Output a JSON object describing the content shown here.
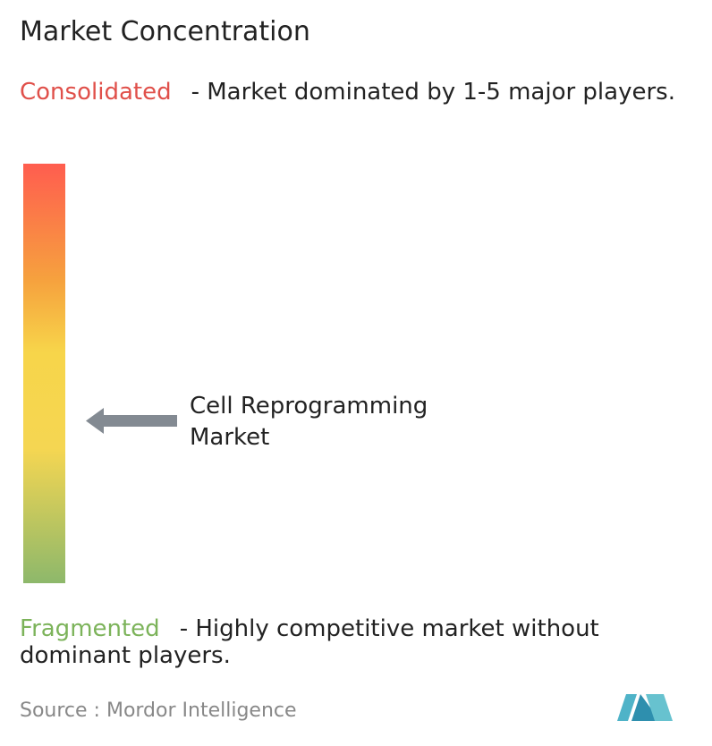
{
  "title": "Market Concentration",
  "consolidated": {
    "label": "Consolidated",
    "description": "- Market dominated by 1-5 major players."
  },
  "fragmented": {
    "label": "Fragmented",
    "description": "- Highly competitive market without dominant players."
  },
  "market": {
    "label": "Cell Reprogramming Market"
  },
  "source": "Source : Mordor Intelligence"
}
